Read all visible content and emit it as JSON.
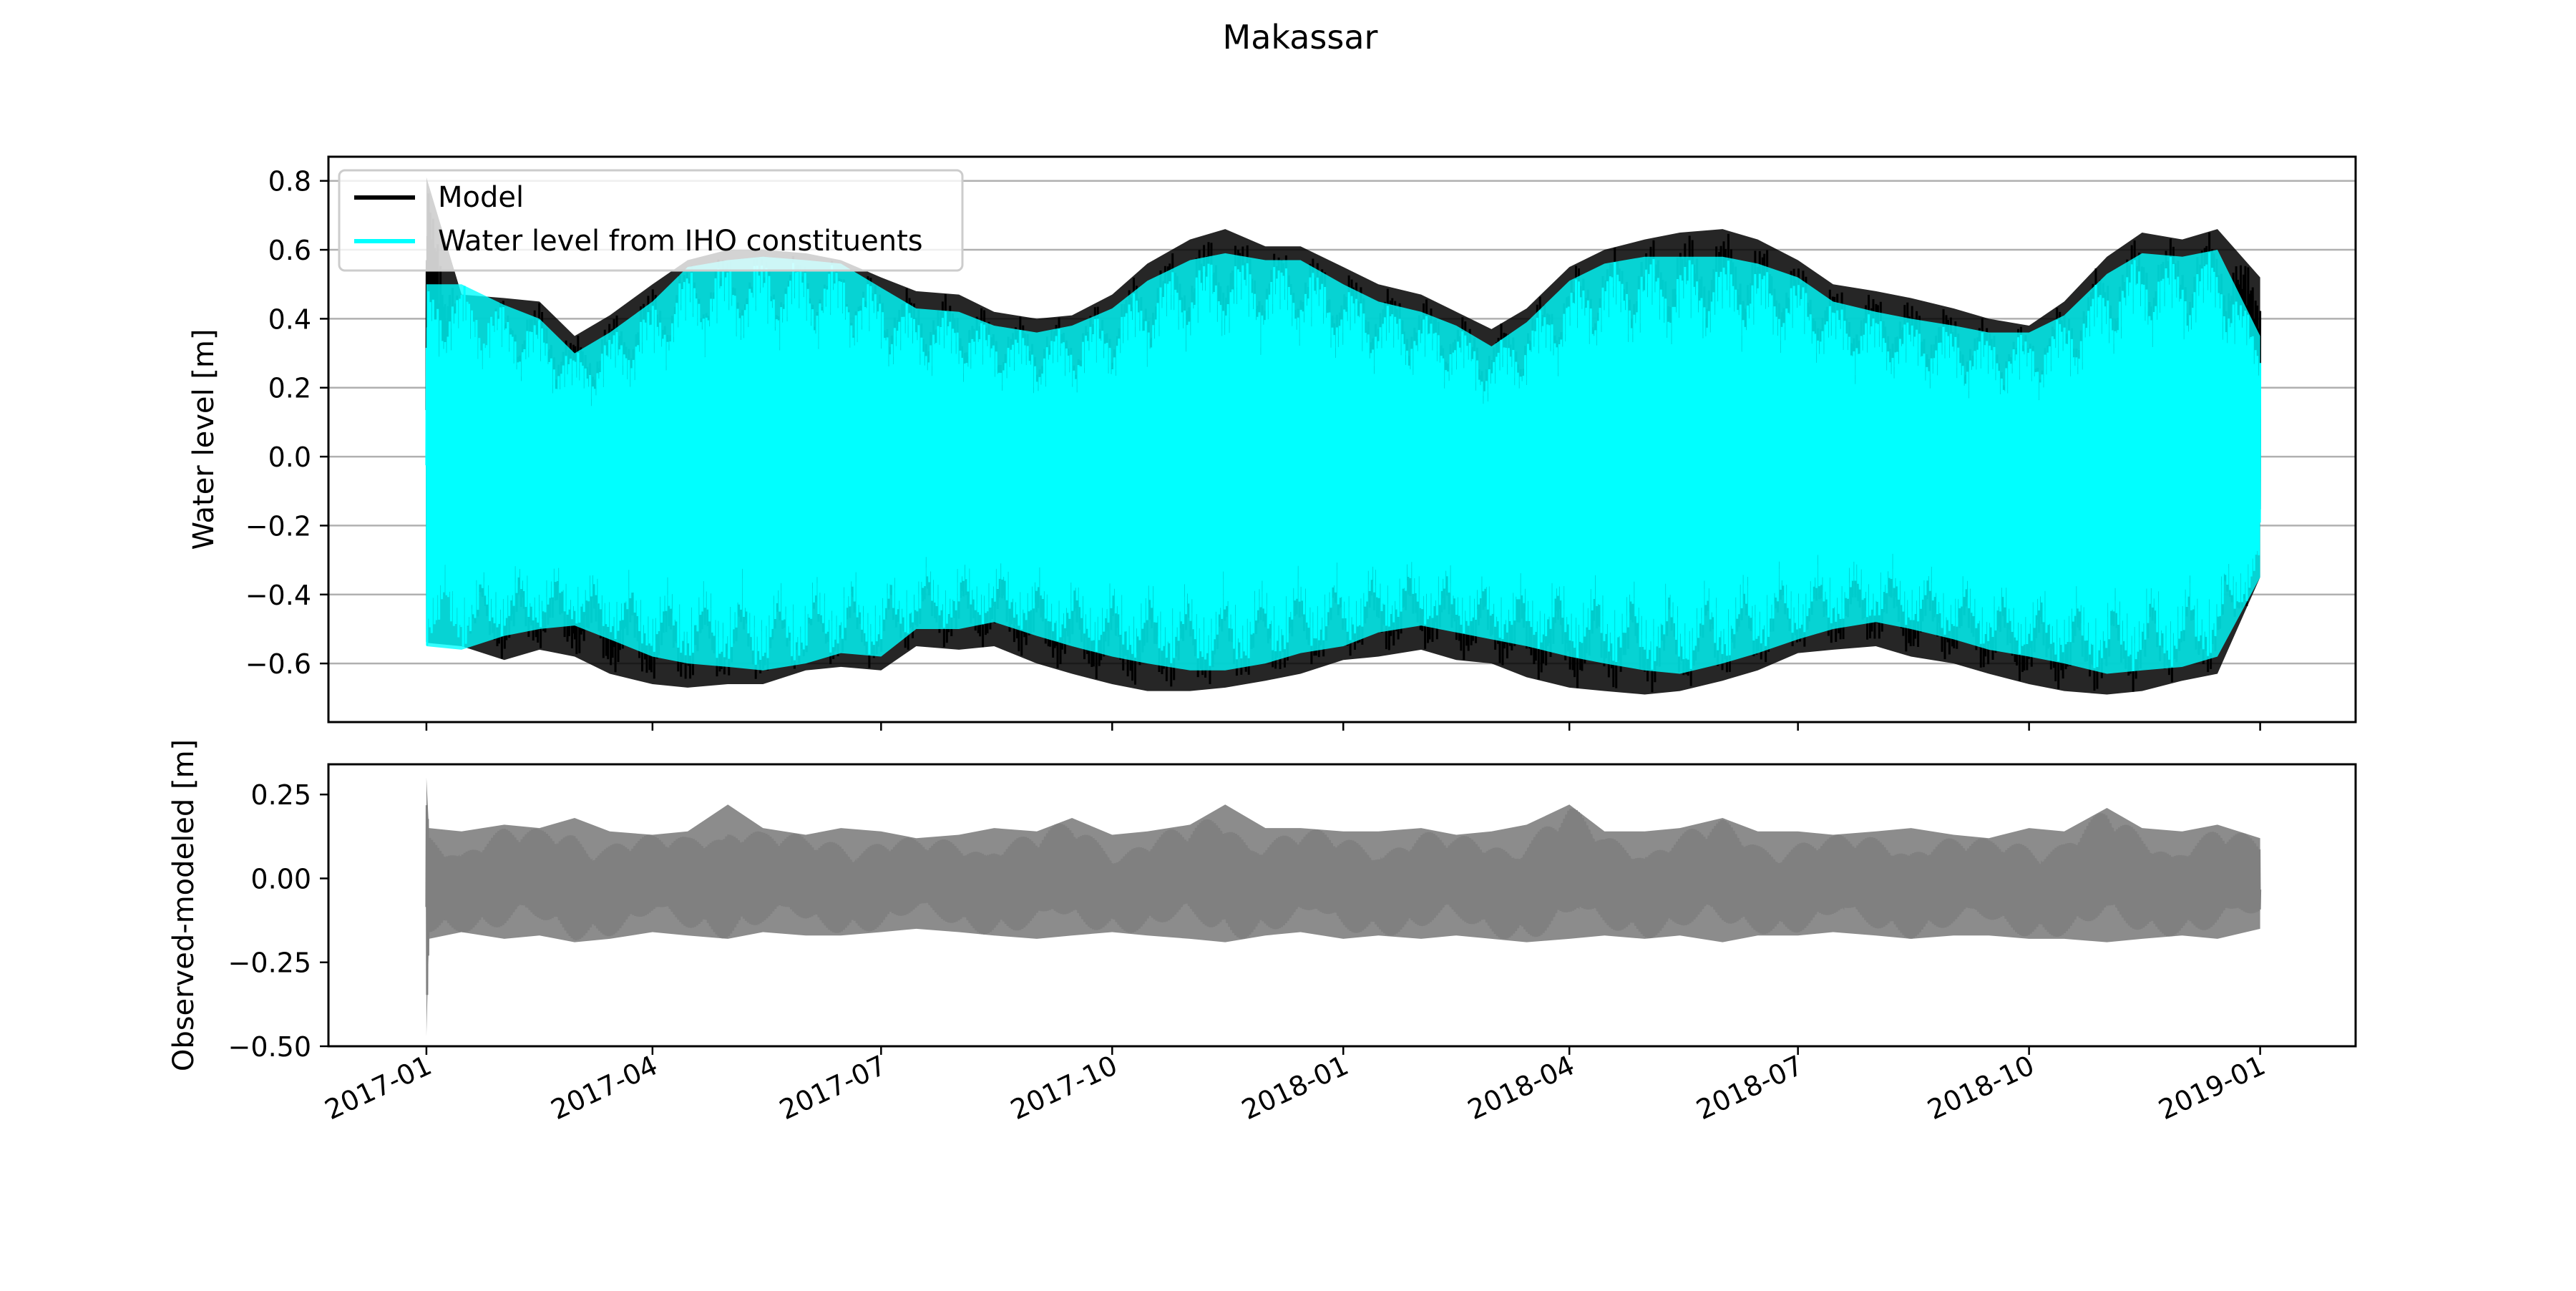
{
  "figure": {
    "title": "Makassar"
  },
  "chart_data": [
    {
      "type": "line",
      "panel": "top",
      "title": "Makassar",
      "xlabel": "",
      "ylabel": "Water level [m]",
      "xlim": [
        "2016-11-23",
        "2019-02-08"
      ],
      "ylim": [
        -0.77,
        0.87
      ],
      "yticks": [
        -0.6,
        -0.4,
        -0.2,
        0.0,
        0.2,
        0.4,
        0.6,
        0.8
      ],
      "ytick_labels": [
        "−0.6",
        "−0.4",
        "−0.2",
        "0.0",
        "0.2",
        "0.4",
        "0.6",
        "0.8"
      ],
      "grid": "horizontal",
      "legend": "upper left",
      "x_range": [
        "2017-01-01",
        "2019-01-01"
      ],
      "series": [
        {
          "name": "Model",
          "color": "#000000",
          "note": "dense high-frequency tidal oscillation drawn as min/max envelope",
          "x": [
            "2017-01-01",
            "2017-01-15",
            "2017-02-01",
            "2017-02-15",
            "2017-03-01",
            "2017-03-15",
            "2017-04-01",
            "2017-04-15",
            "2017-05-01",
            "2017-05-15",
            "2017-06-01",
            "2017-06-15",
            "2017-07-01",
            "2017-07-15",
            "2017-08-01",
            "2017-08-15",
            "2017-09-01",
            "2017-09-15",
            "2017-10-01",
            "2017-10-15",
            "2017-11-01",
            "2017-11-15",
            "2017-12-01",
            "2017-12-15",
            "2018-01-01",
            "2018-01-15",
            "2018-02-01",
            "2018-02-15",
            "2018-03-01",
            "2018-03-15",
            "2018-04-01",
            "2018-04-15",
            "2018-05-01",
            "2018-05-15",
            "2018-06-01",
            "2018-06-15",
            "2018-07-01",
            "2018-07-15",
            "2018-08-01",
            "2018-08-15",
            "2018-09-01",
            "2018-09-15",
            "2018-10-01",
            "2018-10-15",
            "2018-11-01",
            "2018-11-15",
            "2018-12-01",
            "2018-12-15",
            "2019-01-01"
          ],
          "upper": [
            0.81,
            0.47,
            0.46,
            0.45,
            0.35,
            0.41,
            0.5,
            0.57,
            0.6,
            0.6,
            0.59,
            0.57,
            0.52,
            0.48,
            0.47,
            0.42,
            0.4,
            0.41,
            0.47,
            0.56,
            0.63,
            0.66,
            0.61,
            0.61,
            0.55,
            0.5,
            0.47,
            0.42,
            0.37,
            0.43,
            0.55,
            0.6,
            0.63,
            0.65,
            0.66,
            0.63,
            0.57,
            0.5,
            0.48,
            0.46,
            0.43,
            0.4,
            0.38,
            0.45,
            0.58,
            0.65,
            0.63,
            0.66,
            0.52
          ],
          "lower": [
            -0.54,
            -0.55,
            -0.59,
            -0.56,
            -0.58,
            -0.63,
            -0.66,
            -0.67,
            -0.66,
            -0.66,
            -0.62,
            -0.61,
            -0.62,
            -0.55,
            -0.56,
            -0.55,
            -0.6,
            -0.63,
            -0.66,
            -0.68,
            -0.68,
            -0.67,
            -0.65,
            -0.63,
            -0.59,
            -0.58,
            -0.56,
            -0.59,
            -0.6,
            -0.64,
            -0.67,
            -0.68,
            -0.69,
            -0.68,
            -0.65,
            -0.62,
            -0.57,
            -0.56,
            -0.55,
            -0.58,
            -0.6,
            -0.63,
            -0.66,
            -0.68,
            -0.69,
            -0.68,
            -0.65,
            -0.63,
            -0.35
          ]
        },
        {
          "name": "Water level from IHO constituents",
          "color": "#00ffff",
          "note": "dense high-frequency tidal oscillation drawn as min/max envelope",
          "x": [
            "2017-01-01",
            "2017-01-15",
            "2017-02-01",
            "2017-02-15",
            "2017-03-01",
            "2017-03-15",
            "2017-04-01",
            "2017-04-15",
            "2017-05-01",
            "2017-05-15",
            "2017-06-01",
            "2017-06-15",
            "2017-07-01",
            "2017-07-15",
            "2017-08-01",
            "2017-08-15",
            "2017-09-01",
            "2017-09-15",
            "2017-10-01",
            "2017-10-15",
            "2017-11-01",
            "2017-11-15",
            "2017-12-01",
            "2017-12-15",
            "2018-01-01",
            "2018-01-15",
            "2018-02-01",
            "2018-02-15",
            "2018-03-01",
            "2018-03-15",
            "2018-04-01",
            "2018-04-15",
            "2018-05-01",
            "2018-05-15",
            "2018-06-01",
            "2018-06-15",
            "2018-07-01",
            "2018-07-15",
            "2018-08-01",
            "2018-08-15",
            "2018-09-01",
            "2018-09-15",
            "2018-10-01",
            "2018-10-15",
            "2018-11-01",
            "2018-11-15",
            "2018-12-01",
            "2018-12-15",
            "2019-01-01"
          ],
          "upper": [
            0.5,
            0.5,
            0.44,
            0.4,
            0.3,
            0.36,
            0.45,
            0.55,
            0.57,
            0.58,
            0.57,
            0.56,
            0.49,
            0.43,
            0.42,
            0.38,
            0.36,
            0.38,
            0.43,
            0.51,
            0.57,
            0.59,
            0.57,
            0.57,
            0.5,
            0.45,
            0.42,
            0.38,
            0.32,
            0.39,
            0.51,
            0.56,
            0.58,
            0.58,
            0.58,
            0.56,
            0.52,
            0.45,
            0.42,
            0.4,
            0.38,
            0.36,
            0.36,
            0.41,
            0.53,
            0.59,
            0.58,
            0.6,
            0.35
          ],
          "lower": [
            -0.55,
            -0.56,
            -0.52,
            -0.5,
            -0.49,
            -0.53,
            -0.58,
            -0.6,
            -0.61,
            -0.62,
            -0.6,
            -0.57,
            -0.58,
            -0.5,
            -0.5,
            -0.48,
            -0.52,
            -0.55,
            -0.58,
            -0.6,
            -0.62,
            -0.62,
            -0.6,
            -0.57,
            -0.55,
            -0.51,
            -0.49,
            -0.51,
            -0.53,
            -0.55,
            -0.58,
            -0.6,
            -0.62,
            -0.63,
            -0.6,
            -0.57,
            -0.53,
            -0.5,
            -0.48,
            -0.5,
            -0.53,
            -0.56,
            -0.58,
            -0.6,
            -0.63,
            -0.62,
            -0.61,
            -0.58,
            -0.35
          ]
        }
      ]
    },
    {
      "type": "line",
      "panel": "bottom",
      "xlabel": "",
      "ylabel": "Observed-modeled [m]",
      "xlim": [
        "2016-11-23",
        "2019-02-08"
      ],
      "ylim": [
        -0.5,
        0.34
      ],
      "yticks": [
        -0.5,
        -0.25,
        0.0,
        0.25
      ],
      "ytick_labels": [
        "−0.50",
        "−0.25",
        "0.00",
        "0.25"
      ],
      "grid": "none",
      "legend": "none",
      "xticks": [
        "2017-01-01",
        "2017-04-01",
        "2017-07-01",
        "2017-10-01",
        "2018-01-01",
        "2018-04-01",
        "2018-07-01",
        "2018-10-01",
        "2019-01-01"
      ],
      "xtick_labels": [
        "2017-01",
        "2017-04",
        "2017-07",
        "2017-10",
        "2018-01",
        "2018-04",
        "2018-07",
        "2018-10",
        "2019-01"
      ],
      "series": [
        {
          "name": "",
          "color": "#808080",
          "note": "dense high-frequency residual drawn as min/max envelope",
          "x": [
            "2017-01-01",
            "2017-01-02",
            "2017-01-15",
            "2017-02-01",
            "2017-02-15",
            "2017-03-01",
            "2017-03-15",
            "2017-04-01",
            "2017-04-15",
            "2017-05-01",
            "2017-05-15",
            "2017-06-01",
            "2017-06-15",
            "2017-07-01",
            "2017-07-15",
            "2017-08-01",
            "2017-08-15",
            "2017-09-01",
            "2017-09-15",
            "2017-10-01",
            "2017-10-15",
            "2017-11-01",
            "2017-11-15",
            "2017-12-01",
            "2017-12-15",
            "2018-01-01",
            "2018-01-15",
            "2018-02-01",
            "2018-02-15",
            "2018-03-01",
            "2018-03-15",
            "2018-04-01",
            "2018-04-15",
            "2018-05-01",
            "2018-05-15",
            "2018-06-01",
            "2018-06-15",
            "2018-07-01",
            "2018-07-15",
            "2018-08-01",
            "2018-08-15",
            "2018-09-01",
            "2018-09-15",
            "2018-10-01",
            "2018-10-15",
            "2018-11-01",
            "2018-11-15",
            "2018-12-01",
            "2018-12-15",
            "2019-01-01"
          ],
          "upper": [
            0.3,
            0.15,
            0.14,
            0.16,
            0.15,
            0.18,
            0.14,
            0.13,
            0.14,
            0.22,
            0.15,
            0.13,
            0.15,
            0.14,
            0.12,
            0.13,
            0.15,
            0.14,
            0.18,
            0.13,
            0.14,
            0.16,
            0.22,
            0.15,
            0.15,
            0.14,
            0.14,
            0.15,
            0.13,
            0.14,
            0.16,
            0.22,
            0.14,
            0.14,
            0.15,
            0.18,
            0.14,
            0.14,
            0.13,
            0.14,
            0.15,
            0.13,
            0.12,
            0.15,
            0.14,
            0.21,
            0.15,
            0.14,
            0.16,
            0.12
          ],
          "lower": [
            -0.47,
            -0.18,
            -0.16,
            -0.18,
            -0.17,
            -0.19,
            -0.18,
            -0.16,
            -0.17,
            -0.18,
            -0.16,
            -0.17,
            -0.17,
            -0.16,
            -0.15,
            -0.16,
            -0.17,
            -0.18,
            -0.17,
            -0.16,
            -0.17,
            -0.18,
            -0.19,
            -0.17,
            -0.16,
            -0.18,
            -0.17,
            -0.18,
            -0.17,
            -0.18,
            -0.19,
            -0.18,
            -0.17,
            -0.18,
            -0.17,
            -0.19,
            -0.17,
            -0.17,
            -0.16,
            -0.17,
            -0.18,
            -0.17,
            -0.17,
            -0.18,
            -0.18,
            -0.19,
            -0.18,
            -0.17,
            -0.18,
            -0.15
          ]
        }
      ]
    }
  ]
}
